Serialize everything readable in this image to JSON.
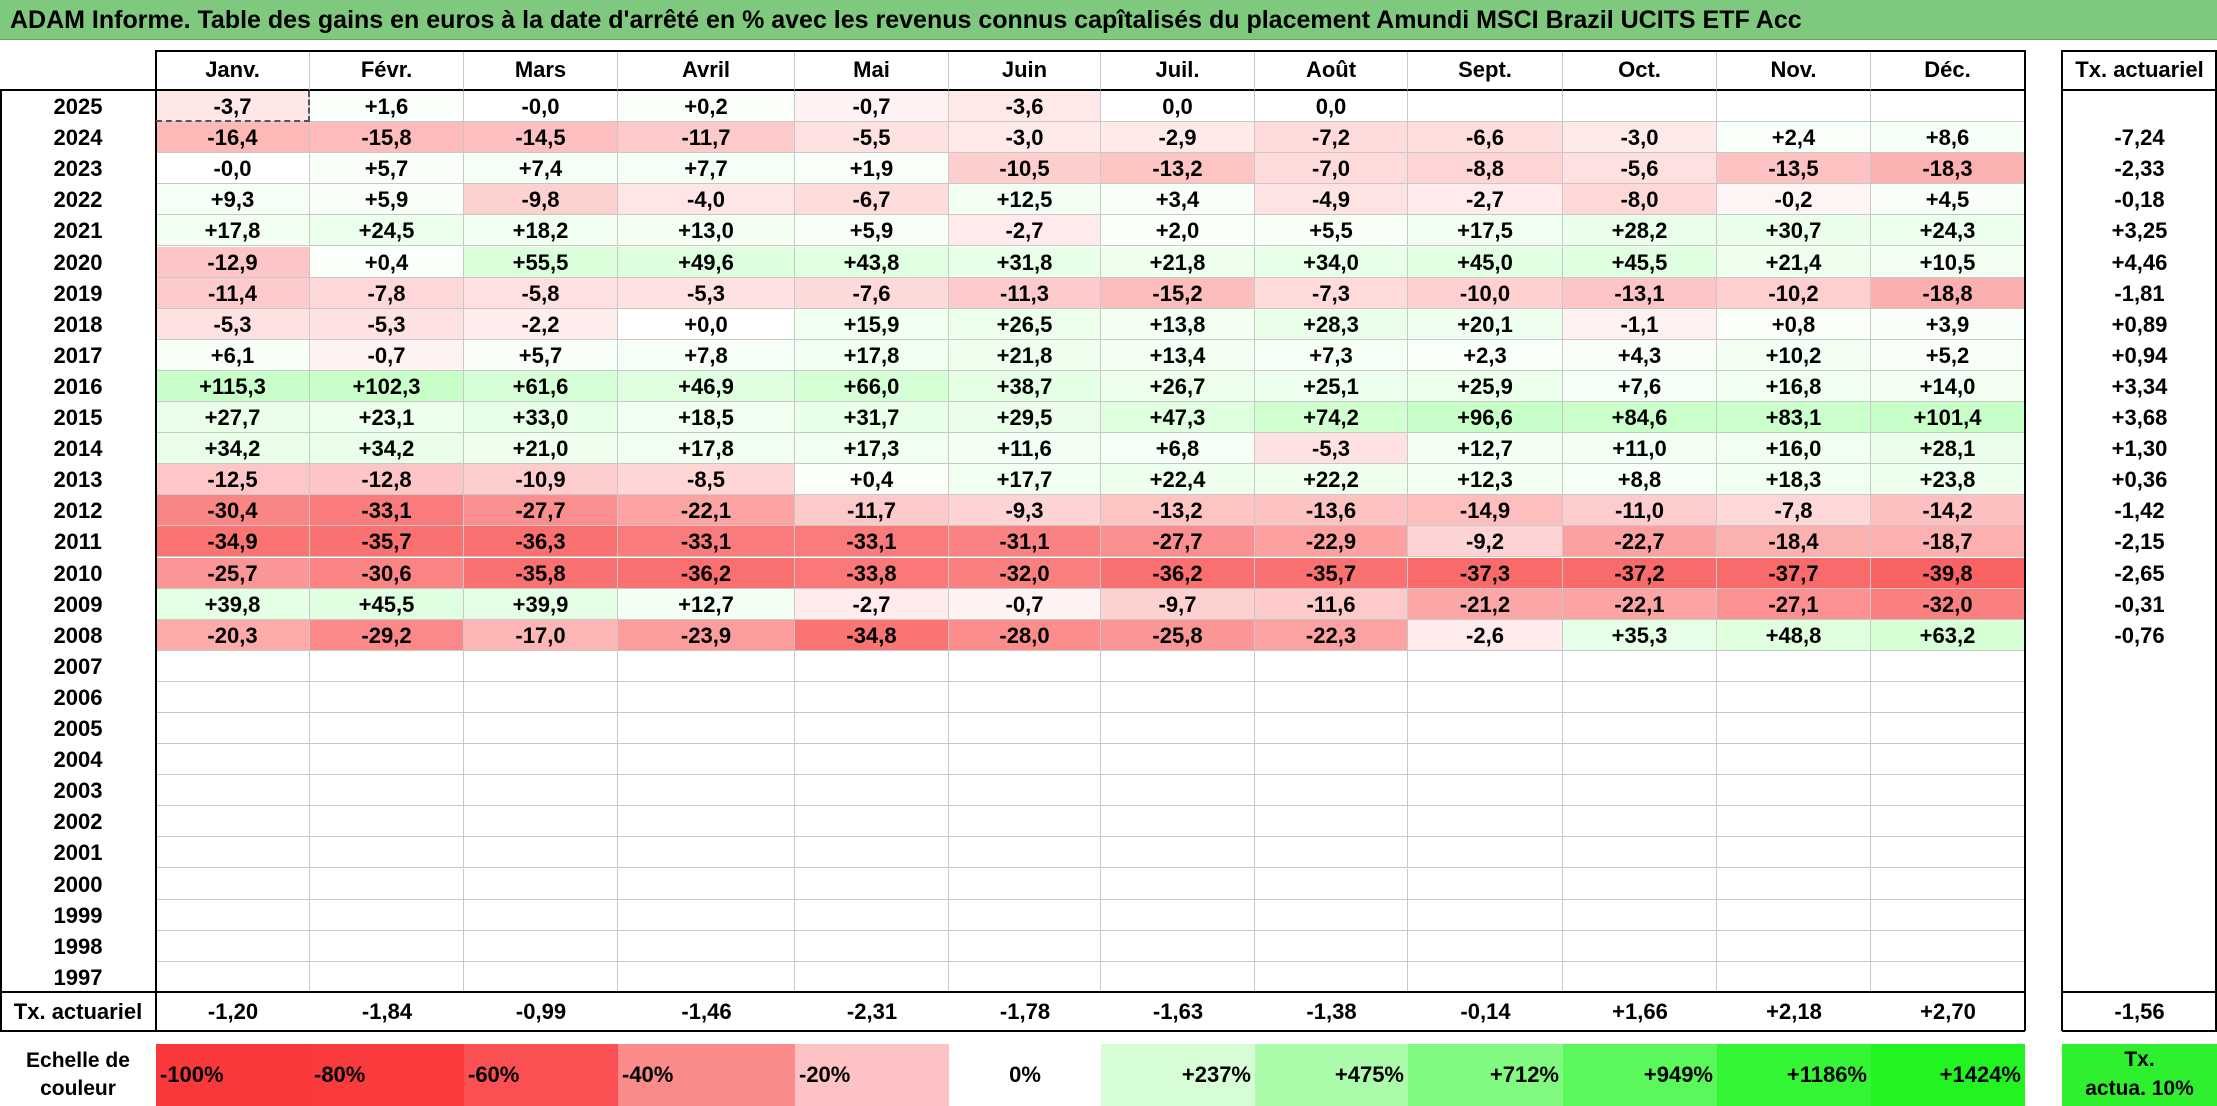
{
  "title": "ADAM Informe. Table des gains en euros à la date d'arrêté en % avec les revenus connus capîtalisés du placement Amundi MSCI Brazil UCITS ETF Acc",
  "months": [
    "Janv.",
    "Févr.",
    "Mars",
    "Avril",
    "Mai",
    "Juin",
    "Juil.",
    "Août",
    "Sept.",
    "Oct.",
    "Nov.",
    "Déc."
  ],
  "rate_header": "Tx. actuariel",
  "rows": [
    {
      "year": "2025",
      "values": [
        "-3,7",
        "+1,6",
        "-0,0",
        "+0,2",
        "-0,7",
        "-3,6",
        "0,0",
        "0,0",
        "",
        "",
        "",
        ""
      ],
      "rate": ""
    },
    {
      "year": "2024",
      "values": [
        "-16,4",
        "-15,8",
        "-14,5",
        "-11,7",
        "-5,5",
        "-3,0",
        "-2,9",
        "-7,2",
        "-6,6",
        "-3,0",
        "+2,4",
        "+8,6"
      ],
      "rate": "-7,24"
    },
    {
      "year": "2023",
      "values": [
        "-0,0",
        "+5,7",
        "+7,4",
        "+7,7",
        "+1,9",
        "-10,5",
        "-13,2",
        "-7,0",
        "-8,8",
        "-5,6",
        "-13,5",
        "-18,3"
      ],
      "rate": "-2,33"
    },
    {
      "year": "2022",
      "values": [
        "+9,3",
        "+5,9",
        "-9,8",
        "-4,0",
        "-6,7",
        "+12,5",
        "+3,4",
        "-4,9",
        "-2,7",
        "-8,0",
        "-0,2",
        "+4,5"
      ],
      "rate": "-0,18"
    },
    {
      "year": "2021",
      "values": [
        "+17,8",
        "+24,5",
        "+18,2",
        "+13,0",
        "+5,9",
        "-2,7",
        "+2,0",
        "+5,5",
        "+17,5",
        "+28,2",
        "+30,7",
        "+24,3"
      ],
      "rate": "+3,25"
    },
    {
      "year": "2020",
      "values": [
        "-12,9",
        "+0,4",
        "+55,5",
        "+49,6",
        "+43,8",
        "+31,8",
        "+21,8",
        "+34,0",
        "+45,0",
        "+45,5",
        "+21,4",
        "+10,5"
      ],
      "rate": "+4,46"
    },
    {
      "year": "2019",
      "values": [
        "-11,4",
        "-7,8",
        "-5,8",
        "-5,3",
        "-7,6",
        "-11,3",
        "-15,2",
        "-7,3",
        "-10,0",
        "-13,1",
        "-10,2",
        "-18,8"
      ],
      "rate": "-1,81"
    },
    {
      "year": "2018",
      "values": [
        "-5,3",
        "-5,3",
        "-2,2",
        "+0,0",
        "+15,9",
        "+26,5",
        "+13,8",
        "+28,3",
        "+20,1",
        "-1,1",
        "+0,8",
        "+3,9"
      ],
      "rate": "+0,89"
    },
    {
      "year": "2017",
      "values": [
        "+6,1",
        "-0,7",
        "+5,7",
        "+7,8",
        "+17,8",
        "+21,8",
        "+13,4",
        "+7,3",
        "+2,3",
        "+4,3",
        "+10,2",
        "+5,2"
      ],
      "rate": "+0,94"
    },
    {
      "year": "2016",
      "values": [
        "+115,3",
        "+102,3",
        "+61,6",
        "+46,9",
        "+66,0",
        "+38,7",
        "+26,7",
        "+25,1",
        "+25,9",
        "+7,6",
        "+16,8",
        "+14,0"
      ],
      "rate": "+3,34"
    },
    {
      "year": "2015",
      "values": [
        "+27,7",
        "+23,1",
        "+33,0",
        "+18,5",
        "+31,7",
        "+29,5",
        "+47,3",
        "+74,2",
        "+96,6",
        "+84,6",
        "+83,1",
        "+101,4"
      ],
      "rate": "+3,68"
    },
    {
      "year": "2014",
      "values": [
        "+34,2",
        "+34,2",
        "+21,0",
        "+17,8",
        "+17,3",
        "+11,6",
        "+6,8",
        "-5,3",
        "+12,7",
        "+11,0",
        "+16,0",
        "+28,1"
      ],
      "rate": "+1,30"
    },
    {
      "year": "2013",
      "values": [
        "-12,5",
        "-12,8",
        "-10,9",
        "-8,5",
        "+0,4",
        "+17,7",
        "+22,4",
        "+22,2",
        "+12,3",
        "+8,8",
        "+18,3",
        "+23,8"
      ],
      "rate": "+0,36"
    },
    {
      "year": "2012",
      "values": [
        "-30,4",
        "-33,1",
        "-27,7",
        "-22,1",
        "-11,7",
        "-9,3",
        "-13,2",
        "-13,6",
        "-14,9",
        "-11,0",
        "-7,8",
        "-14,2"
      ],
      "rate": "-1,42"
    },
    {
      "year": "2011",
      "values": [
        "-34,9",
        "-35,7",
        "-36,3",
        "-33,1",
        "-33,1",
        "-31,1",
        "-27,7",
        "-22,9",
        "-9,2",
        "-22,7",
        "-18,4",
        "-18,7"
      ],
      "rate": "-2,15"
    },
    {
      "year": "2010",
      "values": [
        "-25,7",
        "-30,6",
        "-35,8",
        "-36,2",
        "-33,8",
        "-32,0",
        "-36,2",
        "-35,7",
        "-37,3",
        "-37,2",
        "-37,7",
        "-39,8"
      ],
      "rate": "-2,65"
    },
    {
      "year": "2009",
      "values": [
        "+39,8",
        "+45,5",
        "+39,9",
        "+12,7",
        "-2,7",
        "-0,7",
        "-9,7",
        "-11,6",
        "-21,2",
        "-22,1",
        "-27,1",
        "-32,0"
      ],
      "rate": "-0,31"
    },
    {
      "year": "2008",
      "values": [
        "-20,3",
        "-29,2",
        "-17,0",
        "-23,9",
        "-34,8",
        "-28,0",
        "-25,8",
        "-22,3",
        "-2,6",
        "+35,3",
        "+48,8",
        "+63,2"
      ],
      "rate": "-0,76"
    },
    {
      "year": "2007",
      "values": [
        "",
        "",
        "",
        "",
        "",
        "",
        "",
        "",
        "",
        "",
        "",
        ""
      ],
      "rate": ""
    },
    {
      "year": "2006",
      "values": [
        "",
        "",
        "",
        "",
        "",
        "",
        "",
        "",
        "",
        "",
        "",
        ""
      ],
      "rate": ""
    },
    {
      "year": "2005",
      "values": [
        "",
        "",
        "",
        "",
        "",
        "",
        "",
        "",
        "",
        "",
        "",
        ""
      ],
      "rate": ""
    },
    {
      "year": "2004",
      "values": [
        "",
        "",
        "",
        "",
        "",
        "",
        "",
        "",
        "",
        "",
        "",
        ""
      ],
      "rate": ""
    },
    {
      "year": "2003",
      "values": [
        "",
        "",
        "",
        "",
        "",
        "",
        "",
        "",
        "",
        "",
        "",
        ""
      ],
      "rate": ""
    },
    {
      "year": "2002",
      "values": [
        "",
        "",
        "",
        "",
        "",
        "",
        "",
        "",
        "",
        "",
        "",
        ""
      ],
      "rate": ""
    },
    {
      "year": "2001",
      "values": [
        "",
        "",
        "",
        "",
        "",
        "",
        "",
        "",
        "",
        "",
        "",
        ""
      ],
      "rate": ""
    },
    {
      "year": "2000",
      "values": [
        "",
        "",
        "",
        "",
        "",
        "",
        "",
        "",
        "",
        "",
        "",
        ""
      ],
      "rate": ""
    },
    {
      "year": "1999",
      "values": [
        "",
        "",
        "",
        "",
        "",
        "",
        "",
        "",
        "",
        "",
        "",
        ""
      ],
      "rate": ""
    },
    {
      "year": "1998",
      "values": [
        "",
        "",
        "",
        "",
        "",
        "",
        "",
        "",
        "",
        "",
        "",
        ""
      ],
      "rate": ""
    },
    {
      "year": "1997",
      "values": [
        "",
        "",
        "",
        "",
        "",
        "",
        "",
        "",
        "",
        "",
        "",
        ""
      ],
      "rate": ""
    }
  ],
  "summary": {
    "label": "Tx. actuariel",
    "values": [
      "-1,20",
      "-1,84",
      "-0,99",
      "-1,46",
      "-2,31",
      "-1,78",
      "-1,63",
      "-1,38",
      "-0,14",
      "+1,66",
      "+2,18",
      "+2,70"
    ],
    "total": "-1,56"
  },
  "scale": {
    "label_line1": "Echelle de",
    "label_line2": "couleur",
    "items": [
      {
        "text": "-100%",
        "color": "#f8383b",
        "align": "left"
      },
      {
        "text": "-80%",
        "color": "#f93b3e",
        "align": "left"
      },
      {
        "text": "-60%",
        "color": "#fa5053",
        "align": "left"
      },
      {
        "text": "-40%",
        "color": "#fb8a8b",
        "align": "left"
      },
      {
        "text": "-20%",
        "color": "#fdc3c4",
        "align": "left"
      },
      {
        "text": "0%",
        "color": "#ffffff",
        "align": "center"
      },
      {
        "text": "+237%",
        "color": "#d6fdd6",
        "align": "right"
      },
      {
        "text": "+475%",
        "color": "#aafcaa",
        "align": "right"
      },
      {
        "text": "+712%",
        "color": "#82fa82",
        "align": "right"
      },
      {
        "text": "+949%",
        "color": "#5af85a",
        "align": "right"
      },
      {
        "text": "+1186%",
        "color": "#35f635",
        "align": "right"
      },
      {
        "text": "+1424%",
        "color": "#22f422",
        "align": "right"
      }
    ],
    "rate_line1": "Tx.",
    "rate_line2": "actua. 10%",
    "rate_color": "#2ef02e"
  }
}
